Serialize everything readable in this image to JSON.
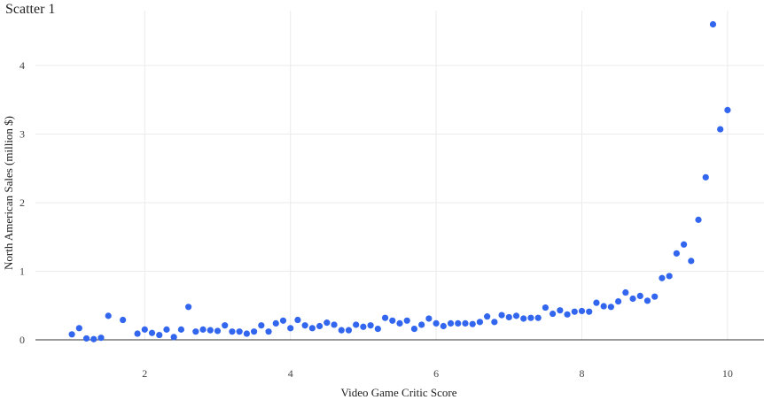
{
  "chart_data": {
    "type": "scatter",
    "title": "Scatter 1",
    "xlabel": "Video Game Critic Score",
    "ylabel": "North American Sales (million $)",
    "xlim": [
      0.5,
      10.5
    ],
    "ylim": [
      0,
      4.8
    ],
    "xticks": [
      2,
      4,
      6,
      8,
      10
    ],
    "yticks": [
      0,
      1,
      2,
      3,
      4
    ],
    "grid": true,
    "legend": "none",
    "marker_color": "#3366ee",
    "points": [
      {
        "x": 1.0,
        "y": 0.08
      },
      {
        "x": 1.1,
        "y": 0.17
      },
      {
        "x": 1.2,
        "y": 0.02
      },
      {
        "x": 1.3,
        "y": 0.01
      },
      {
        "x": 1.4,
        "y": 0.03
      },
      {
        "x": 1.5,
        "y": 0.35
      },
      {
        "x": 1.7,
        "y": 0.29
      },
      {
        "x": 1.9,
        "y": 0.09
      },
      {
        "x": 2.0,
        "y": 0.15
      },
      {
        "x": 2.1,
        "y": 0.1
      },
      {
        "x": 2.2,
        "y": 0.07
      },
      {
        "x": 2.3,
        "y": 0.15
      },
      {
        "x": 2.4,
        "y": 0.04
      },
      {
        "x": 2.5,
        "y": 0.15
      },
      {
        "x": 2.6,
        "y": 0.48
      },
      {
        "x": 2.7,
        "y": 0.12
      },
      {
        "x": 2.8,
        "y": 0.15
      },
      {
        "x": 2.9,
        "y": 0.14
      },
      {
        "x": 3.0,
        "y": 0.13
      },
      {
        "x": 3.1,
        "y": 0.21
      },
      {
        "x": 3.2,
        "y": 0.12
      },
      {
        "x": 3.3,
        "y": 0.12
      },
      {
        "x": 3.4,
        "y": 0.09
      },
      {
        "x": 3.5,
        "y": 0.12
      },
      {
        "x": 3.6,
        "y": 0.21
      },
      {
        "x": 3.7,
        "y": 0.12
      },
      {
        "x": 3.8,
        "y": 0.24
      },
      {
        "x": 3.9,
        "y": 0.28
      },
      {
        "x": 4.0,
        "y": 0.17
      },
      {
        "x": 4.1,
        "y": 0.29
      },
      {
        "x": 4.2,
        "y": 0.21
      },
      {
        "x": 4.3,
        "y": 0.17
      },
      {
        "x": 4.4,
        "y": 0.2
      },
      {
        "x": 4.5,
        "y": 0.25
      },
      {
        "x": 4.6,
        "y": 0.22
      },
      {
        "x": 4.7,
        "y": 0.14
      },
      {
        "x": 4.8,
        "y": 0.14
      },
      {
        "x": 4.9,
        "y": 0.22
      },
      {
        "x": 5.0,
        "y": 0.19
      },
      {
        "x": 5.1,
        "y": 0.21
      },
      {
        "x": 5.2,
        "y": 0.16
      },
      {
        "x": 5.3,
        "y": 0.32
      },
      {
        "x": 5.4,
        "y": 0.28
      },
      {
        "x": 5.5,
        "y": 0.24
      },
      {
        "x": 5.6,
        "y": 0.28
      },
      {
        "x": 5.7,
        "y": 0.16
      },
      {
        "x": 5.8,
        "y": 0.22
      },
      {
        "x": 5.9,
        "y": 0.31
      },
      {
        "x": 6.0,
        "y": 0.24
      },
      {
        "x": 6.1,
        "y": 0.2
      },
      {
        "x": 6.2,
        "y": 0.24
      },
      {
        "x": 6.3,
        "y": 0.24
      },
      {
        "x": 6.4,
        "y": 0.24
      },
      {
        "x": 6.5,
        "y": 0.23
      },
      {
        "x": 6.6,
        "y": 0.26
      },
      {
        "x": 6.7,
        "y": 0.34
      },
      {
        "x": 6.8,
        "y": 0.26
      },
      {
        "x": 6.9,
        "y": 0.36
      },
      {
        "x": 7.0,
        "y": 0.33
      },
      {
        "x": 7.1,
        "y": 0.35
      },
      {
        "x": 7.2,
        "y": 0.31
      },
      {
        "x": 7.3,
        "y": 0.32
      },
      {
        "x": 7.4,
        "y": 0.32
      },
      {
        "x": 7.5,
        "y": 0.47
      },
      {
        "x": 7.6,
        "y": 0.38
      },
      {
        "x": 7.7,
        "y": 0.43
      },
      {
        "x": 7.8,
        "y": 0.37
      },
      {
        "x": 7.9,
        "y": 0.41
      },
      {
        "x": 8.0,
        "y": 0.42
      },
      {
        "x": 8.1,
        "y": 0.41
      },
      {
        "x": 8.2,
        "y": 0.54
      },
      {
        "x": 8.3,
        "y": 0.49
      },
      {
        "x": 8.4,
        "y": 0.48
      },
      {
        "x": 8.5,
        "y": 0.56
      },
      {
        "x": 8.6,
        "y": 0.69
      },
      {
        "x": 8.7,
        "y": 0.6
      },
      {
        "x": 8.8,
        "y": 0.64
      },
      {
        "x": 8.9,
        "y": 0.57
      },
      {
        "x": 9.0,
        "y": 0.63
      },
      {
        "x": 9.1,
        "y": 0.9
      },
      {
        "x": 9.2,
        "y": 0.93
      },
      {
        "x": 9.3,
        "y": 1.26
      },
      {
        "x": 9.4,
        "y": 1.39
      },
      {
        "x": 9.5,
        "y": 1.15
      },
      {
        "x": 9.6,
        "y": 1.75
      },
      {
        "x": 9.7,
        "y": 2.37
      },
      {
        "x": 9.8,
        "y": 4.6
      },
      {
        "x": 9.9,
        "y": 3.07
      },
      {
        "x": 10.0,
        "y": 3.35
      }
    ]
  }
}
